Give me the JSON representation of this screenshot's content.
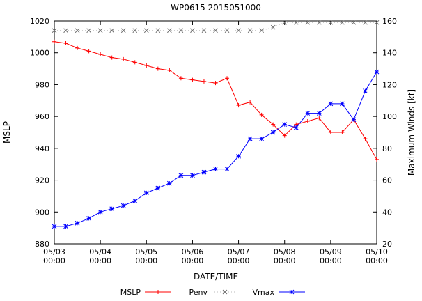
{
  "chart_data": {
    "type": "line",
    "title": "WP0615 2015051000",
    "xlabel": "DATE/TIME",
    "ylabel_left": "MSLP",
    "ylabel_right": "Maximum Winds [kt]",
    "grid": false,
    "legend_position": "bottom-center",
    "x_hours": [
      0,
      6,
      12,
      18,
      24,
      30,
      36,
      42,
      48,
      54,
      60,
      66,
      72,
      78,
      84,
      90,
      96,
      102,
      108,
      114,
      120,
      126,
      132,
      138,
      144,
      150,
      156,
      162,
      168
    ],
    "x_ticks": [
      {
        "hour": 0,
        "label": "05/03",
        "label2": "00:00"
      },
      {
        "hour": 24,
        "label": "05/04",
        "label2": "00:00"
      },
      {
        "hour": 48,
        "label": "05/05",
        "label2": "00:00"
      },
      {
        "hour": 72,
        "label": "05/06",
        "label2": "00:00"
      },
      {
        "hour": 96,
        "label": "05/07",
        "label2": "00:00"
      },
      {
        "hour": 120,
        "label": "05/08",
        "label2": "00:00"
      },
      {
        "hour": 144,
        "label": "05/09",
        "label2": "00:00"
      },
      {
        "hour": 168,
        "label": "05/10",
        "label2": "00:00"
      }
    ],
    "yleft": {
      "min": 880,
      "max": 1020,
      "ticks": [
        880,
        900,
        920,
        940,
        960,
        980,
        1000,
        1020
      ]
    },
    "yright": {
      "min": 20,
      "max": 160,
      "ticks": [
        20,
        40,
        60,
        80,
        100,
        120,
        140,
        160
      ]
    },
    "series": [
      {
        "name": "MSLP",
        "axis": "left",
        "color": "#ff0000",
        "marker_color": "#ff0000",
        "marker": "plus",
        "style": "solid",
        "values": [
          1007,
          1006,
          1003,
          1001,
          999,
          997,
          996,
          994,
          992,
          990,
          989,
          984,
          983,
          982,
          981,
          984,
          967,
          969,
          961,
          955,
          948,
          955,
          957,
          959,
          950,
          950,
          958,
          946,
          933
        ]
      },
      {
        "name": "Penv",
        "axis": "left",
        "color": "#bbbbbb",
        "marker_color": "#707070",
        "marker": "cross",
        "style": "dotted",
        "values": [
          1014,
          1014,
          1014,
          1014,
          1014,
          1014,
          1014,
          1014,
          1014,
          1014,
          1014,
          1014,
          1014,
          1014,
          1014,
          1014,
          1014,
          1014,
          1014,
          1016,
          1019,
          1019,
          1019,
          1019,
          1019,
          1019,
          1019,
          1019,
          1019
        ]
      },
      {
        "name": "Vmax",
        "axis": "right",
        "color": "#0000ff",
        "marker_color": "#0000ff",
        "marker": "star",
        "style": "solid",
        "values": [
          31,
          31,
          33,
          36,
          40,
          42,
          44,
          47,
          52,
          55,
          58,
          63,
          63,
          65,
          67,
          67,
          75,
          86,
          86,
          90,
          95,
          93,
          102,
          102,
          108,
          108,
          98,
          116,
          128
        ]
      }
    ]
  }
}
